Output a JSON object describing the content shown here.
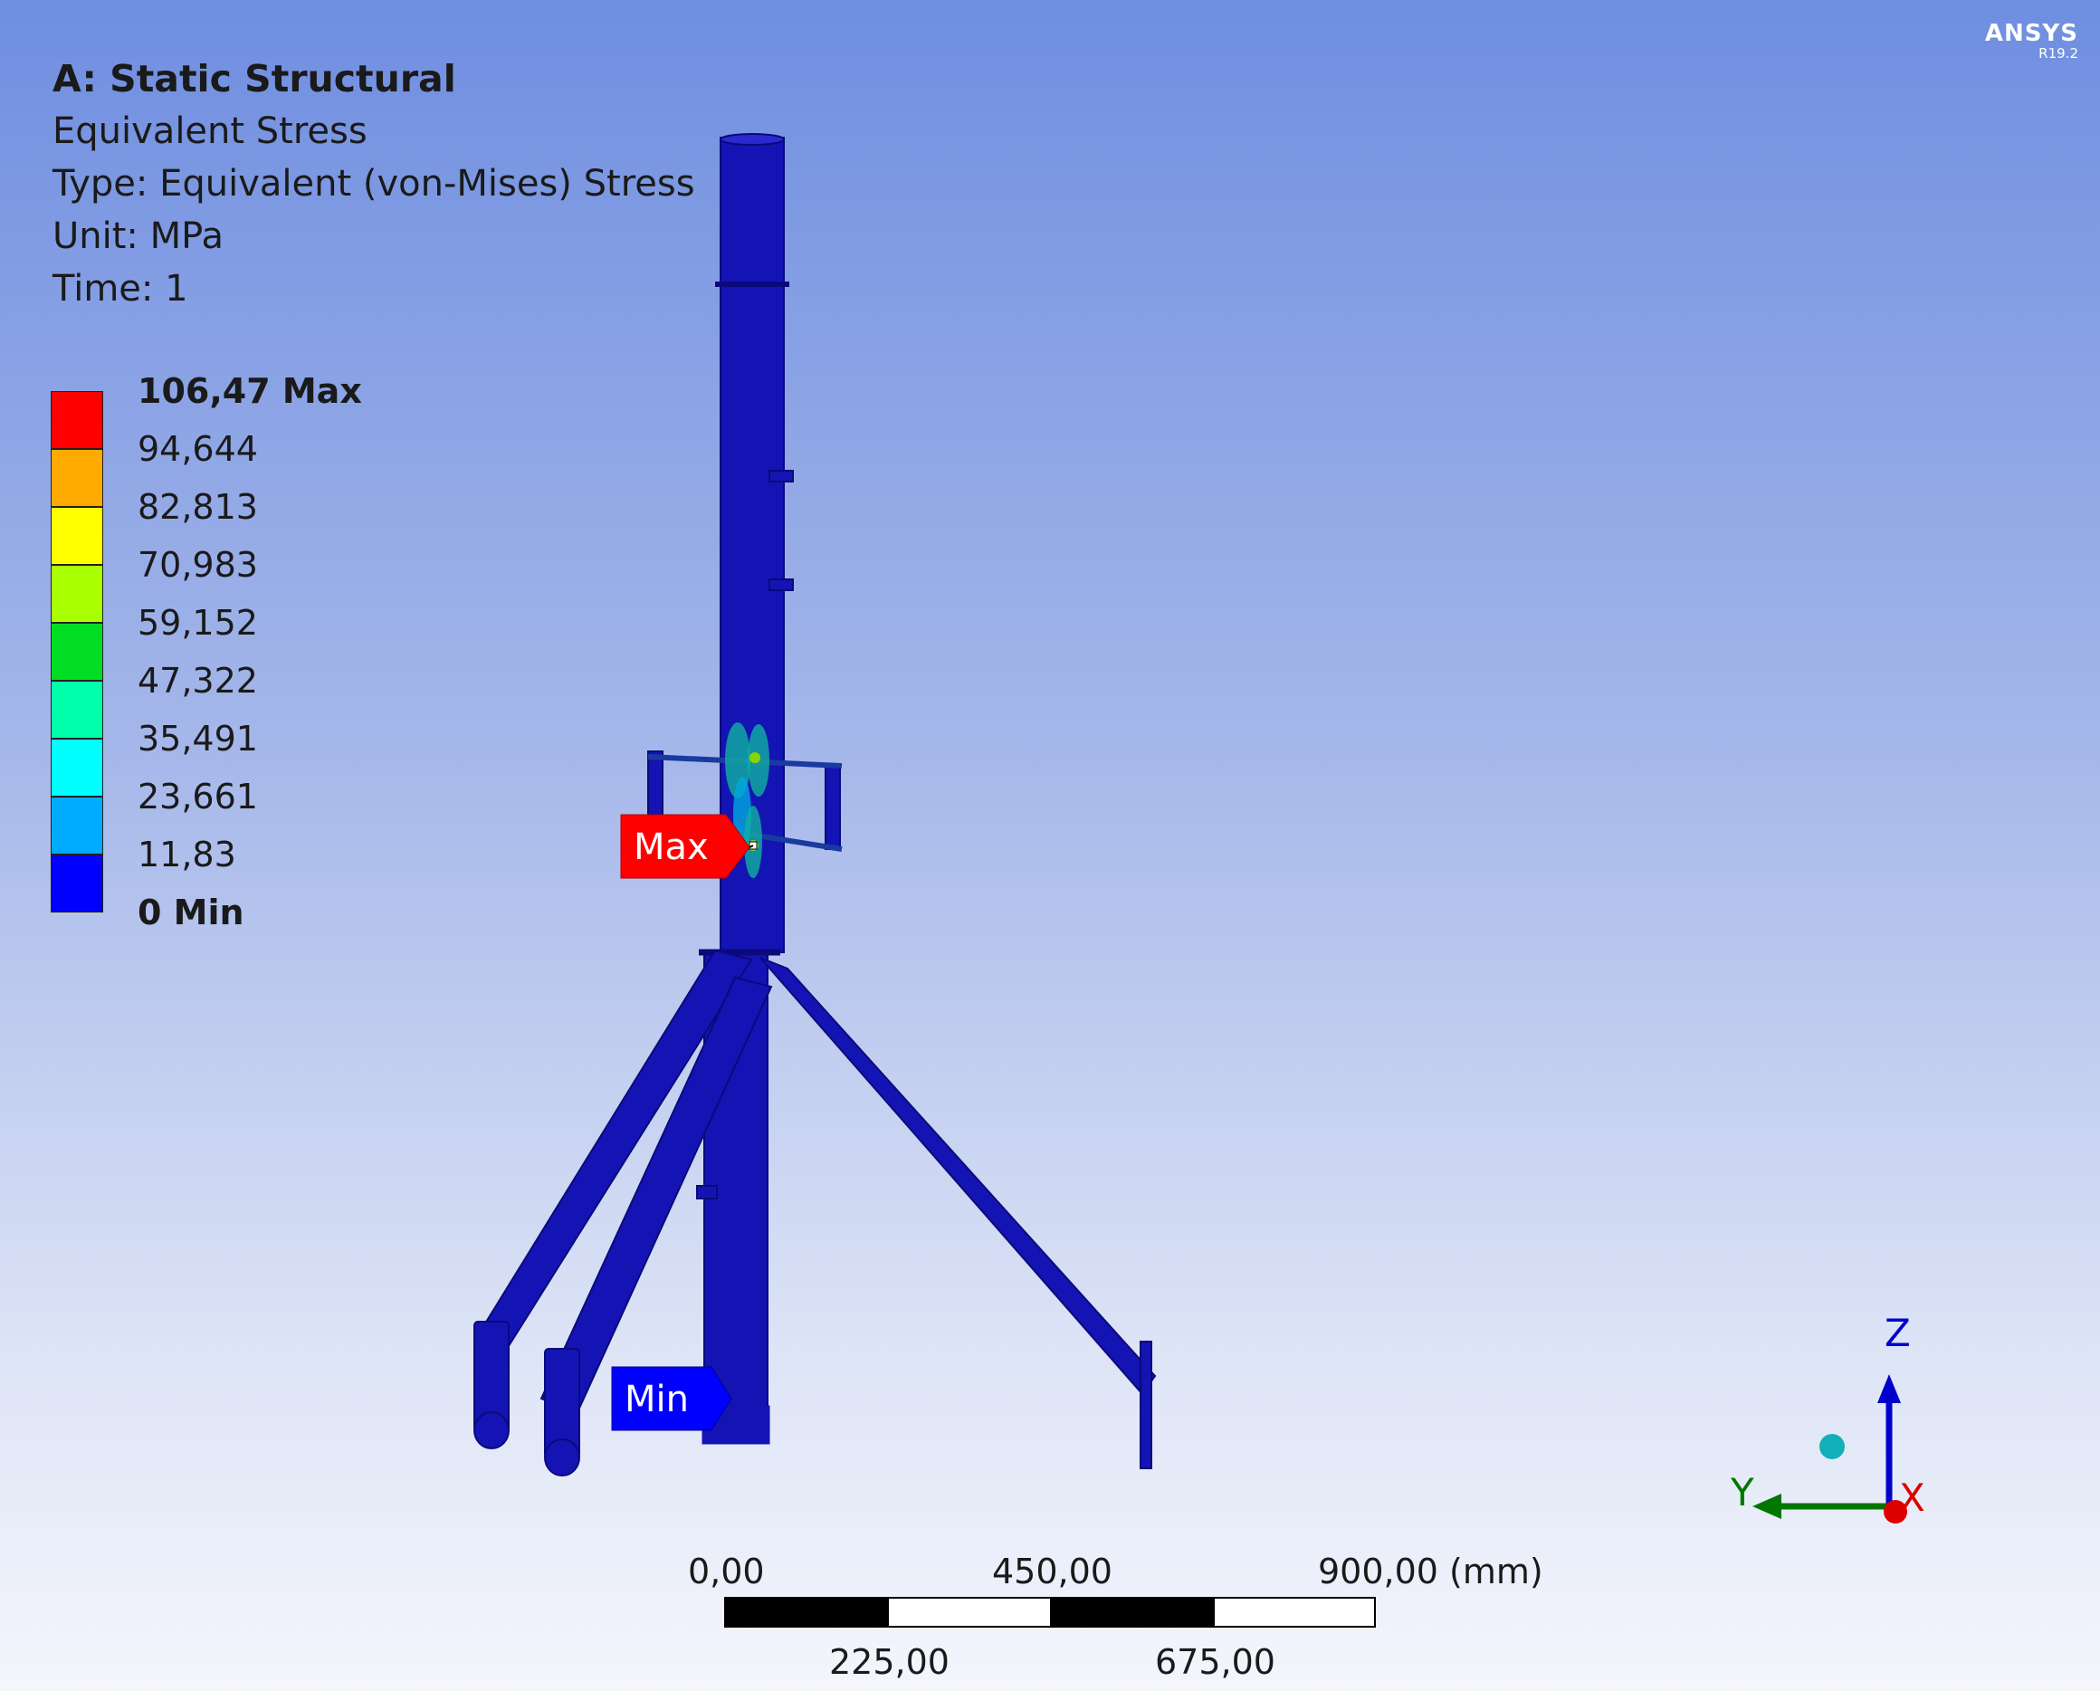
{
  "header": {
    "title": "A: Static Structural",
    "result_name": "Equivalent Stress",
    "type": "Type: Equivalent (von-Mises) Stress",
    "unit": "Unit: MPa",
    "time": "Time: 1"
  },
  "logo": {
    "name": "ANSYS",
    "version": "R19.2"
  },
  "legend": {
    "levels": [
      {
        "value": "106,47 Max",
        "bold": true,
        "color": "#ff0000"
      },
      {
        "value": "94,644",
        "color": "#ffaa00"
      },
      {
        "value": "82,813",
        "color": "#ffff00"
      },
      {
        "value": "70,983",
        "color": "#aaff00"
      },
      {
        "value": "59,152",
        "color": "#00dd22"
      },
      {
        "value": "47,322",
        "color": "#00ffaa"
      },
      {
        "value": "35,491",
        "color": "#00ffff"
      },
      {
        "value": "23,661",
        "color": "#00aaff"
      },
      {
        "value": "11,83",
        "color": "#0000ff"
      },
      {
        "value": "0 Min",
        "bold": true
      }
    ]
  },
  "markers": {
    "max_label": "Max",
    "min_label": "Min",
    "max_color": "#ff0000",
    "min_color": "#0000ff"
  },
  "scale_bar": {
    "top_labels": [
      "0,00",
      "450,00",
      "900,00 (mm)"
    ],
    "bottom_labels": [
      "225,00",
      "675,00"
    ]
  },
  "triad": {
    "z": "Z",
    "y": "Y",
    "x": "X",
    "z_color": "#0000cc",
    "y_color": "#007700",
    "x_color": "#dd0000"
  },
  "colors": {
    "model": "#1414b4",
    "background_top": "#6f8ee0",
    "background_bottom": "#f4f6fc"
  }
}
